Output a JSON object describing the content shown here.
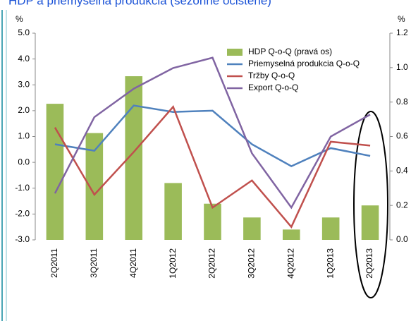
{
  "chart_data": {
    "type": "bar_line",
    "title": "HDP a priemyselná produkcia (sezónne očistené)",
    "y_unit": "%",
    "y2_unit": "%",
    "categories": [
      "2Q2011",
      "3Q2011",
      "4Q2011",
      "1Q2012",
      "2Q2012",
      "3Q2012",
      "4Q2012",
      "1Q2013",
      "2Q2013"
    ],
    "series": [
      {
        "name": "HDP Q-o-Q (pravá os)",
        "color": "#9bbb59",
        "kind": "bar",
        "axis": "y2",
        "values": [
          0.79,
          0.62,
          0.95,
          0.33,
          0.21,
          0.13,
          0.06,
          0.13,
          0.2
        ]
      },
      {
        "name": "Priemyselná produkcia Q-o-Q",
        "color": "#4f81bd",
        "kind": "line",
        "values": [
          0.7,
          0.45,
          2.2,
          1.95,
          2.0,
          0.7,
          -0.15,
          0.55,
          0.25
        ]
      },
      {
        "name": "Tržby Q-o-Q",
        "color": "#c0504d",
        "kind": "line",
        "values": [
          1.35,
          -1.25,
          0.4,
          2.15,
          -1.75,
          -0.7,
          -2.5,
          0.8,
          0.65
        ]
      },
      {
        "name": "Export Q-o-Q",
        "color": "#8064a2",
        "kind": "line",
        "values": [
          -1.2,
          1.75,
          2.85,
          3.65,
          4.05,
          0.35,
          -1.75,
          1.0,
          1.85
        ]
      }
    ],
    "ylim": [
      -3,
      5
    ],
    "yticks": [
      {
        "value": -3,
        "label": "-3.0"
      },
      {
        "value": -2,
        "label": "-2.0"
      },
      {
        "value": -1,
        "label": "-1.0"
      },
      {
        "value": 0,
        "label": "0.0"
      },
      {
        "value": 1,
        "label": "1.0"
      },
      {
        "value": 2,
        "label": "2.0"
      },
      {
        "value": 3,
        "label": "3.0"
      },
      {
        "value": 4,
        "label": "4.0"
      },
      {
        "value": 5,
        "label": "5.0"
      }
    ],
    "y2lim": [
      0,
      1.2
    ],
    "y2ticks": [
      {
        "value": 0,
        "label": "0.0"
      },
      {
        "value": 0.2,
        "label": "0.2"
      },
      {
        "value": 0.4,
        "label": "0.4"
      },
      {
        "value": 0.6,
        "label": "0.6"
      },
      {
        "value": 0.8,
        "label": "0.8"
      },
      {
        "value": 1,
        "label": "1.0"
      },
      {
        "value": 1.2,
        "label": "1.2"
      }
    ]
  }
}
